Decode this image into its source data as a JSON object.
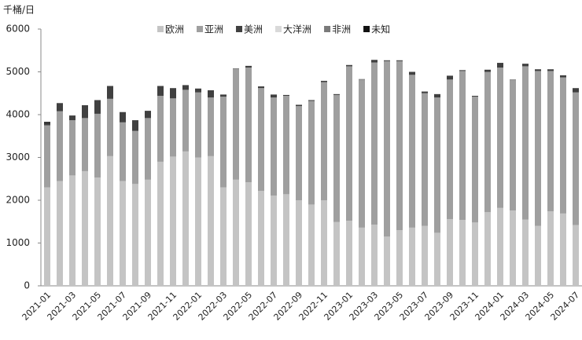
{
  "chart_data": {
    "type": "stacked_bar",
    "y_label": "千桶/日",
    "categories": [
      "2021-01",
      null,
      "2021-03",
      null,
      "2021-05",
      null,
      "2021-07",
      null,
      "2021-09",
      null,
      "2021-11",
      null,
      "2022-01",
      null,
      "2022-03",
      null,
      "2022-05",
      null,
      "2022-07",
      null,
      "2022-09",
      null,
      "2022-11",
      null,
      "2023-01",
      null,
      "2023-03",
      null,
      "2023-05",
      null,
      "2023-07",
      null,
      "2023-09",
      null,
      "2023-11",
      null,
      "2024-01",
      null,
      "2024-03",
      null,
      "2024-05",
      null,
      "2024-07"
    ],
    "series": [
      {
        "name": "欧洲",
        "color": "#c4c4c4",
        "values": [
          2300,
          2450,
          2580,
          2680,
          2530,
          3030,
          2450,
          2380,
          2480,
          2900,
          3020,
          3140,
          3000,
          3030,
          2300,
          2480,
          2420,
          2220,
          2110,
          2140,
          2000,
          1900,
          2000,
          1490,
          1520,
          1360,
          1430,
          1150,
          1300,
          1360,
          1400,
          1240,
          1560,
          1540,
          1480,
          1720,
          1820,
          1760,
          1550,
          1400,
          1740,
          1690,
          1420
        ]
      },
      {
        "name": "亚洲",
        "color": "#9f9f9f",
        "values": [
          1450,
          1630,
          1290,
          1240,
          1490,
          1340,
          1370,
          1240,
          1440,
          1540,
          1360,
          1440,
          1520,
          1370,
          2120,
          2590,
          2680,
          2400,
          2290,
          2300,
          2200,
          2420,
          2760,
          2970,
          3610,
          3460,
          3790,
          4100,
          3950,
          3570,
          3100,
          3160,
          3260,
          3480,
          2940,
          3280,
          3280,
          3050,
          3580,
          3620,
          3280,
          3180,
          3100
        ]
      },
      {
        "name": "美洲",
        "color": "#404040",
        "values": [
          50,
          190,
          110,
          300,
          320,
          300,
          240,
          250,
          170,
          230,
          240,
          110,
          90,
          170,
          50,
          10,
          40,
          40,
          70,
          20,
          30,
          20,
          30,
          20,
          30,
          10,
          60,
          20,
          20,
          70,
          40,
          80,
          90,
          20,
          20,
          50,
          110,
          10,
          60,
          40,
          40,
          50,
          100
        ]
      },
      {
        "name": "大洋洲",
        "color": "#d9d9d9",
        "values": [
          0,
          0,
          0,
          0,
          0,
          0,
          0,
          0,
          0,
          0,
          0,
          0,
          0,
          0,
          0,
          0,
          0,
          0,
          0,
          0,
          0,
          0,
          0,
          0,
          0,
          0,
          0,
          0,
          0,
          0,
          0,
          0,
          0,
          0,
          0,
          0,
          0,
          0,
          0,
          0,
          0,
          0,
          0
        ]
      },
      {
        "name": "非洲",
        "color": "#7a7a7a",
        "values": [
          0,
          0,
          0,
          0,
          0,
          0,
          0,
          0,
          0,
          0,
          0,
          0,
          0,
          0,
          0,
          0,
          0,
          0,
          0,
          0,
          0,
          0,
          0,
          0,
          0,
          0,
          0,
          0,
          0,
          0,
          0,
          0,
          0,
          0,
          0,
          0,
          0,
          0,
          0,
          0,
          0,
          0,
          0
        ]
      },
      {
        "name": "未知",
        "color": "#111111",
        "values": [
          30,
          0,
          0,
          0,
          0,
          0,
          0,
          0,
          0,
          0,
          0,
          0,
          0,
          0,
          0,
          0,
          0,
          0,
          0,
          0,
          0,
          0,
          0,
          0,
          0,
          0,
          0,
          0,
          0,
          0,
          0,
          0,
          0,
          0,
          0,
          0,
          0,
          0,
          0,
          0,
          0,
          0,
          0
        ]
      }
    ],
    "ylim": [
      0,
      6000
    ],
    "yticks": [
      0,
      1000,
      2000,
      3000,
      4000,
      5000,
      6000
    ],
    "legend": "top"
  }
}
